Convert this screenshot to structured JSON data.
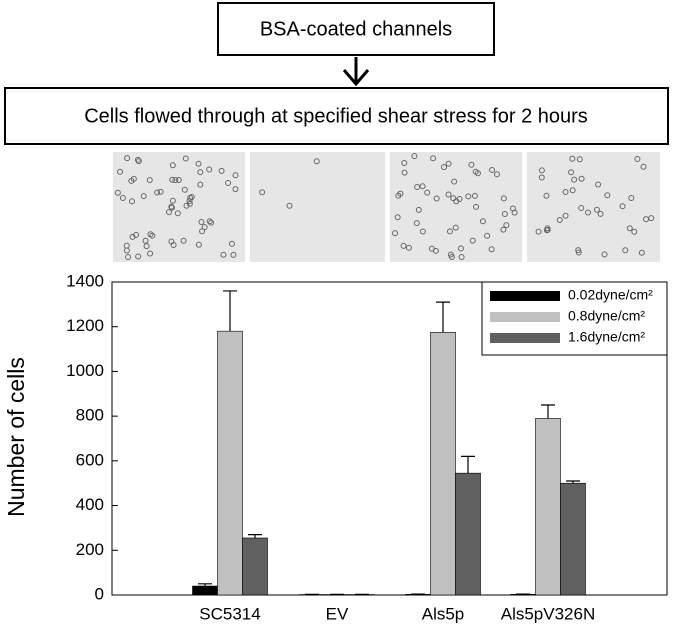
{
  "diagram": {
    "boxes": [
      "BSA-coated channels",
      "Cells flowed through at specified shear stress for 2 hours"
    ]
  },
  "chart_data": {
    "type": "bar",
    "y_label": "Number of cells",
    "categories": [
      "SC5314",
      "EV",
      "Als5p",
      "Als5pV326N"
    ],
    "series": [
      {
        "name": "0.02dyne/cm²",
        "color": "#000000",
        "values": [
          40,
          2,
          3,
          3
        ],
        "errors": [
          10,
          1,
          1,
          1
        ]
      },
      {
        "name": "0.8dyne/cm²",
        "color": "#c0c0c0",
        "values": [
          1180,
          2,
          1175,
          790
        ],
        "errors": [
          180,
          1,
          135,
          60
        ]
      },
      {
        "name": "1.6dyne/cm²",
        "color": "#606060",
        "values": [
          255,
          2,
          545,
          500
        ],
        "errors": [
          15,
          1,
          75,
          10
        ]
      }
    ],
    "ylim": [
      0,
      1400
    ],
    "yticks": [
      0,
      200,
      400,
      600,
      800,
      1000,
      1200,
      1400
    ],
    "legend": "upper right"
  }
}
